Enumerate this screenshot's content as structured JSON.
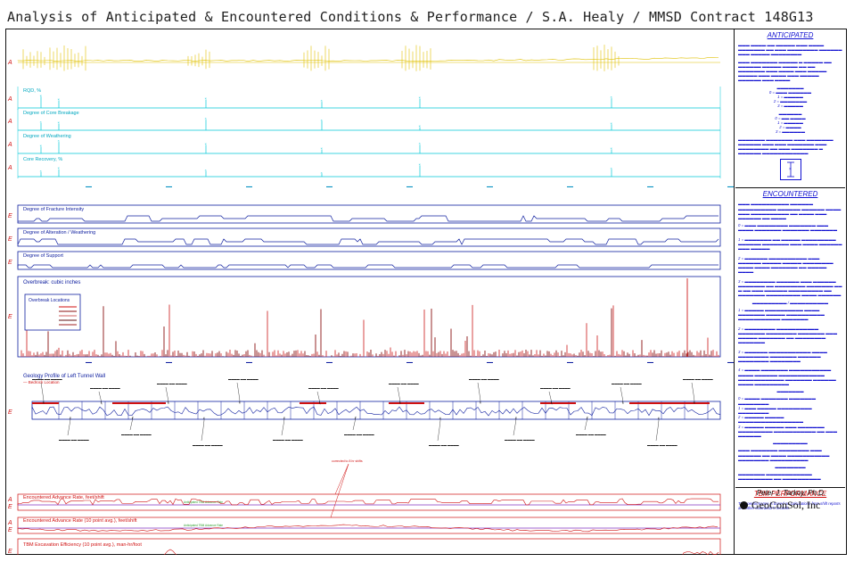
{
  "title": "Analysis of Anticipated & Encountered Conditions & Performance / S.A. Healy / MMSD Contract 148G13",
  "chart_data": {
    "type": "profile",
    "anticipated_tracks": [
      {
        "label": "RQD, %",
        "prefix": "A"
      },
      {
        "label": "Degree of Core Breakage",
        "prefix": "A"
      },
      {
        "label": "Degree of Weathering",
        "prefix": "A"
      },
      {
        "label": "Core Recovery, %",
        "prefix": "A"
      }
    ],
    "encountered_tracks": [
      {
        "label": "Degree of Fracture Intensity",
        "prefix": "E"
      },
      {
        "label": "Degree of Alteration / Weathering",
        "prefix": "E"
      },
      {
        "label": "Degree of Support",
        "prefix": "E"
      }
    ],
    "overbreak_title": "Overbreak: cubic inches",
    "overbreak_legend_title": "Overbreak Locations",
    "geology_title": "Geology Profile of Left Tunnel Wall",
    "geology_subtitle": "— Bedrock Location",
    "advance_rate_label": "Encountered Advance Rate, feet/shift",
    "advance_rate_avg_label": "Encountered Advance Rate (10 point avg.), feet/shift",
    "efficiency_label": "TBM Excavation Efficiency (10 point avg.), man-hr/foot",
    "anticipated_rate_note": "Anticipated TBM Advance Rate",
    "annotation_note": "corrected to 8 hr shifts"
  },
  "right_panel": {
    "anticipated_header": "ANTICIPATED",
    "encountered_header": "ENCOUNTERED",
    "tbm_header": "TBM PERFORMANCE",
    "tbm_text": "TBM performance is based on calculations from shift reports and other contractor's records."
  },
  "logo": {
    "person": "Peter J. Tarkoy, Ph.D.",
    "company": "GeoConSol, Inc"
  }
}
